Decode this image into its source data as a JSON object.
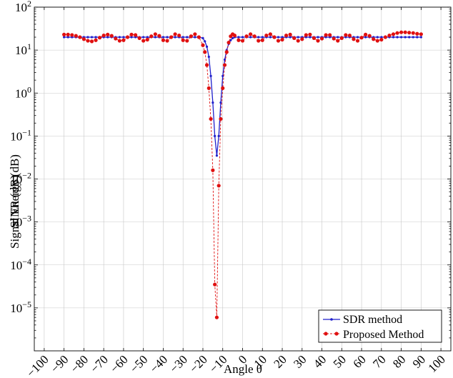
{
  "chart_data": {
    "type": "line",
    "title": "",
    "xlabel": "Angle θ",
    "ylabel": "Signal Energy (dB)",
    "ylabel_overlap": "SINR (dB)",
    "y_scale": "log",
    "grid": true,
    "legend_position": "bottom-right",
    "xlim": [
      -105,
      105
    ],
    "ylim": [
      1e-06,
      100
    ],
    "x_ticks": [
      "−100",
      "−90",
      "−80",
      "−70",
      "−60",
      "−50",
      "−40",
      "−30",
      "−20",
      "−10",
      "0",
      "10",
      "20",
      "30",
      "40",
      "50",
      "60",
      "70",
      "80",
      "90",
      "100"
    ],
    "x_tick_values": [
      -100,
      -90,
      -80,
      -70,
      -60,
      -50,
      -40,
      -30,
      -20,
      -10,
      0,
      10,
      20,
      30,
      40,
      50,
      60,
      70,
      80,
      90,
      100
    ],
    "y_ticks": [
      {
        "value": 1e-05,
        "base": "10",
        "exp": "−5"
      },
      {
        "value": 0.0001,
        "base": "10",
        "exp": "−4"
      },
      {
        "value": 0.001,
        "base": "10",
        "exp": "−3"
      },
      {
        "value": 0.01,
        "base": "10",
        "exp": "−2"
      },
      {
        "value": 0.1,
        "base": "10",
        "exp": "−1"
      },
      {
        "value": 1,
        "base": "10",
        "exp": "0"
      },
      {
        "value": 10,
        "base": "10",
        "exp": "1"
      },
      {
        "value": 100,
        "base": "10",
        "exp": "2"
      }
    ],
    "series": [
      {
        "name": "SDR method",
        "color": "#1f1fcc",
        "marker": "circle-small",
        "line": "solid",
        "x": [
          -90,
          -88,
          -86,
          -84,
          -82,
          -80,
          -78,
          -76,
          -74,
          -72,
          -70,
          -68,
          -66,
          -64,
          -62,
          -60,
          -58,
          -56,
          -54,
          -52,
          -50,
          -48,
          -46,
          -44,
          -42,
          -40,
          -38,
          -36,
          -34,
          -32,
          -30,
          -28,
          -26,
          -24,
          -22,
          -20,
          -19,
          -18,
          -17,
          -16,
          -15,
          -14,
          -13,
          -12,
          -11,
          -10,
          -9,
          -8,
          -7,
          -6,
          -5,
          -4,
          -2,
          0,
          2,
          4,
          6,
          8,
          10,
          12,
          14,
          16,
          18,
          20,
          22,
          24,
          26,
          28,
          30,
          32,
          34,
          36,
          38,
          40,
          42,
          44,
          46,
          48,
          50,
          52,
          54,
          56,
          58,
          60,
          62,
          64,
          66,
          68,
          70,
          72,
          74,
          76,
          78,
          80,
          82,
          84,
          86,
          88,
          90
        ],
        "y": [
          20,
          20,
          20,
          20,
          20,
          20,
          20,
          20,
          20,
          20,
          20,
          20,
          20,
          20,
          20,
          20,
          20,
          20,
          20,
          20,
          20,
          20,
          20,
          20,
          20,
          20,
          20,
          20,
          20,
          20,
          20,
          20,
          20,
          20,
          20,
          19,
          16,
          12,
          7,
          2.5,
          0.6,
          0.1,
          0.035,
          0.1,
          0.6,
          2.5,
          6,
          10,
          14,
          17,
          19,
          20,
          20,
          20,
          20,
          20,
          20,
          20,
          20,
          20,
          20,
          20,
          20,
          20,
          20,
          20,
          20,
          20,
          20,
          20,
          20,
          20,
          20,
          20,
          20,
          20,
          20,
          20,
          20,
          20,
          20,
          20,
          20,
          20,
          20,
          20,
          20,
          20,
          20,
          20,
          20,
          20,
          20,
          20,
          20,
          20,
          20,
          20,
          20
        ]
      },
      {
        "name": "Proposed Method",
        "color": "#e01010",
        "marker": "circle",
        "line": "dashed",
        "x": [
          -90,
          -88,
          -86,
          -84,
          -82,
          -80,
          -78,
          -76,
          -74,
          -72,
          -70,
          -68,
          -66,
          -64,
          -62,
          -60,
          -58,
          -56,
          -54,
          -52,
          -50,
          -48,
          -46,
          -44,
          -42,
          -40,
          -38,
          -36,
          -34,
          -32,
          -30,
          -28,
          -26,
          -24,
          -22,
          -20,
          -19,
          -18,
          -17,
          -16,
          -15,
          -14,
          -13,
          -12,
          -11,
          -10,
          -9,
          -8,
          -7,
          -6,
          -5,
          -4,
          -2,
          0,
          2,
          4,
          6,
          8,
          10,
          12,
          14,
          16,
          18,
          20,
          22,
          24,
          26,
          28,
          30,
          32,
          34,
          36,
          38,
          40,
          42,
          44,
          46,
          48,
          50,
          52,
          54,
          56,
          58,
          60,
          62,
          64,
          66,
          68,
          70,
          72,
          74,
          76,
          78,
          80,
          82,
          84,
          86,
          88,
          90
        ],
        "y": [
          23,
          23,
          22.5,
          21.5,
          20,
          18,
          16.5,
          16,
          17,
          19.5,
          22,
          23,
          21.5,
          18.5,
          16.5,
          17,
          20,
          23,
          22.5,
          19,
          16.5,
          17.5,
          21,
          23.5,
          21.5,
          17,
          16.5,
          20,
          23.5,
          22,
          17,
          16.5,
          21,
          23.5,
          20,
          13,
          9,
          4.5,
          1.3,
          0.25,
          0.016,
          3.5e-05,
          6e-06,
          0.007,
          0.25,
          1.3,
          4.5,
          9,
          15,
          21,
          23.5,
          22,
          17,
          16.5,
          21,
          23.5,
          21,
          16.5,
          17,
          22,
          23.5,
          20,
          16.5,
          17.5,
          22,
          23,
          19,
          16.5,
          18,
          22.5,
          23,
          19,
          16.5,
          18.5,
          22.5,
          22.5,
          18.5,
          16.5,
          19,
          22.5,
          22,
          18,
          16.5,
          19.5,
          23,
          21.5,
          18,
          16.5,
          17.5,
          20,
          22,
          23.5,
          25,
          26,
          26,
          25.5,
          25,
          24,
          23.5
        ]
      }
    ]
  }
}
